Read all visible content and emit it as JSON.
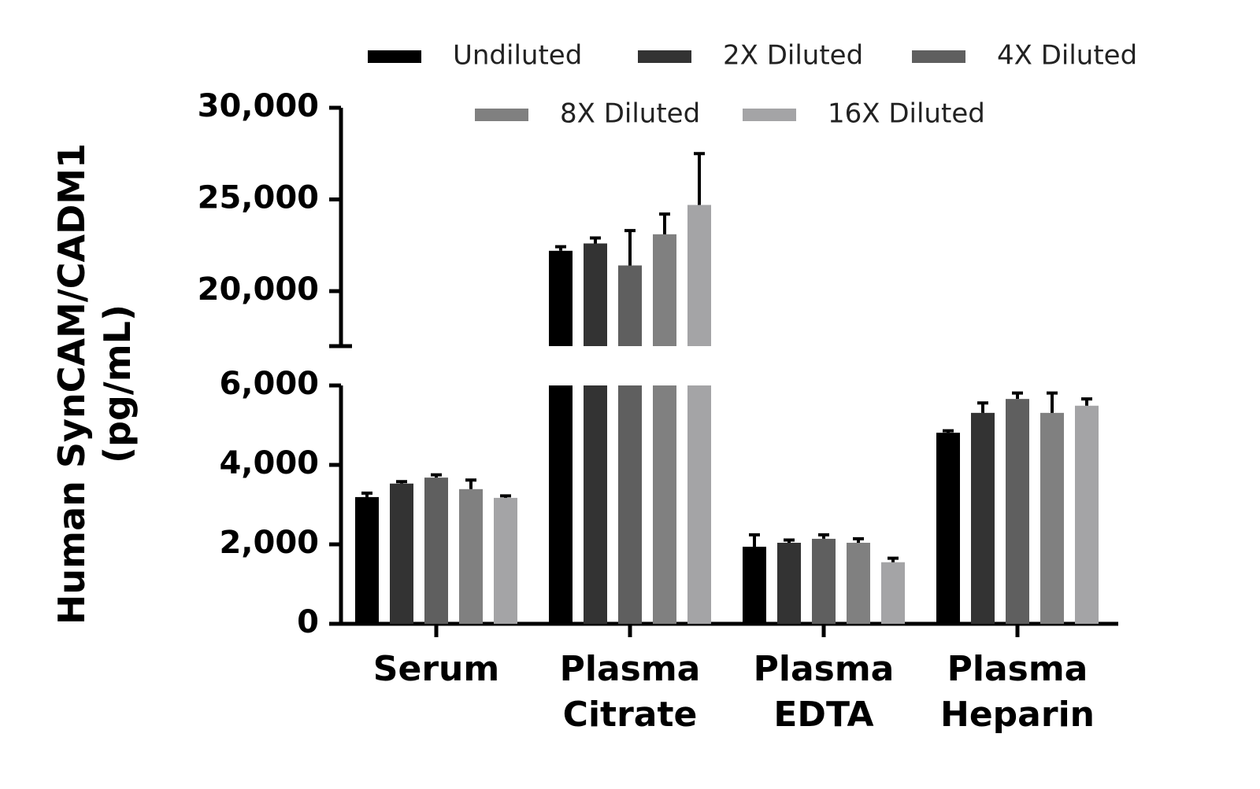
{
  "chart_data": {
    "type": "bar",
    "y_label": "Human SynCAM/CADM1 (pg/mL)",
    "categories": [
      "Serum",
      "Plasma Citrate",
      "Plasma EDTA",
      "Plasma Heparin"
    ],
    "series": [
      {
        "name": "Undiluted",
        "color": "#000000",
        "values": [
          3190,
          22200,
          1940,
          4810
        ],
        "errors": [
          100,
          220,
          300,
          50
        ]
      },
      {
        "name": "2X Diluted",
        "color": "#333333",
        "values": [
          3530,
          22600,
          2040,
          5310
        ],
        "errors": [
          50,
          300,
          70,
          250
        ]
      },
      {
        "name": "4X Diluted",
        "color": "#5f5f5f",
        "values": [
          3680,
          21400,
          2140,
          5660
        ],
        "errors": [
          70,
          1900,
          100,
          150
        ]
      },
      {
        "name": "8X Diluted",
        "color": "#808080",
        "values": [
          3390,
          23100,
          2040,
          5310
        ],
        "errors": [
          230,
          1100,
          100,
          500
        ]
      },
      {
        "name": "16X Diluted",
        "color": "#a4a4a6",
        "values": [
          3170,
          24700,
          1550,
          5490
        ],
        "errors": [
          50,
          2800,
          100,
          170
        ]
      }
    ],
    "ylim": [
      0,
      30000
    ],
    "y_break": [
      6000,
      17000
    ],
    "yticks": [
      0,
      {
        "value": 2000,
        "label": "2,000"
      },
      {
        "value": 4000,
        "label": "4,000"
      },
      {
        "value": 6000,
        "label": "6,000"
      },
      {
        "value": 20000,
        "label": "20,000"
      },
      {
        "value": 25000,
        "label": "25,000"
      },
      {
        "value": 30000,
        "label": "30,000"
      }
    ],
    "grid": false
  }
}
